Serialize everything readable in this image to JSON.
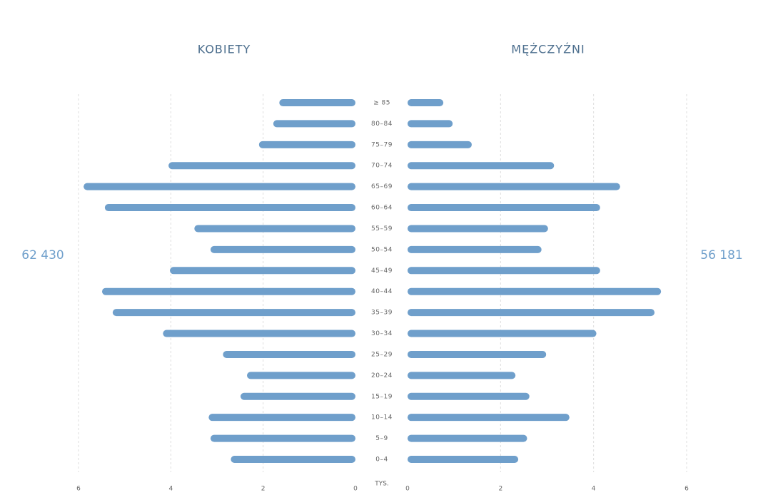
{
  "chart_data": {
    "type": "pyramid",
    "categories": [
      "≥ 85",
      "80–84",
      "75–79",
      "70–74",
      "65–69",
      "60–64",
      "55–59",
      "50–54",
      "45–49",
      "40–44",
      "35–39",
      "30–34",
      "25–29",
      "20–24",
      "15–19",
      "10–14",
      "5–9",
      "0–4"
    ],
    "series": [
      {
        "name": "KOBIETY",
        "total": "62 430",
        "color": "#6f9fcb",
        "values": [
          1.65,
          1.78,
          2.09,
          4.05,
          5.89,
          5.43,
          3.49,
          3.14,
          4.02,
          5.49,
          5.26,
          4.17,
          2.87,
          2.35,
          2.49,
          3.18,
          3.14,
          2.7
        ]
      },
      {
        "name": "MĘŻCZYŹNI",
        "total": "56 181",
        "color": "#6f9fcb",
        "values": [
          0.77,
          0.97,
          1.38,
          3.15,
          4.57,
          4.14,
          3.02,
          2.88,
          4.14,
          5.45,
          5.31,
          4.06,
          2.98,
          2.32,
          2.62,
          3.48,
          2.57,
          2.38
        ]
      }
    ],
    "xlabel": "TYS.",
    "xlim": [
      0,
      6
    ],
    "xticks": [
      0,
      2,
      4,
      6
    ],
    "grid": true
  }
}
